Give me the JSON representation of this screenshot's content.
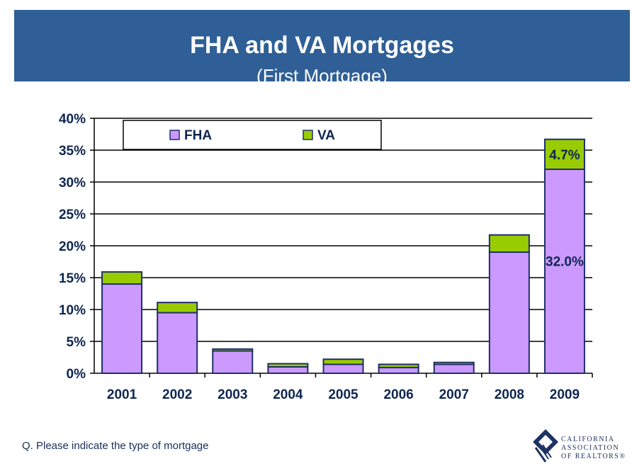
{
  "header": {
    "title": "FHA and VA Mortgages",
    "subtitle": "(First Mortgage)"
  },
  "footnote": "Q. Please indicate the type of mortgage",
  "logo": {
    "line1": "CALIFORNIA",
    "line2": "ASSOCIATION",
    "line3": "OF REALTORS®"
  },
  "colors": {
    "header_bg": "#2f5f96",
    "fha": "#cc99ff",
    "va": "#99cc00",
    "axis_text": "#0f2650",
    "outline": "#1f2f6b"
  },
  "chart_data": {
    "type": "bar",
    "stacked": true,
    "categories": [
      "2001",
      "2002",
      "2003",
      "2004",
      "2005",
      "2006",
      "2007",
      "2008",
      "2009"
    ],
    "series": [
      {
        "name": "FHA",
        "values": [
          14.0,
          9.5,
          3.5,
          1.0,
          1.4,
          0.9,
          1.4,
          19.0,
          32.0
        ],
        "color": "#cc99ff"
      },
      {
        "name": "VA",
        "values": [
          1.9,
          1.6,
          0.3,
          0.5,
          0.8,
          0.5,
          0.3,
          2.7,
          4.7
        ],
        "color": "#99cc00"
      }
    ],
    "ylim": [
      0,
      40
    ],
    "yticks": [
      0,
      5,
      10,
      15,
      20,
      25,
      30,
      35,
      40
    ],
    "ytick_format": "percent",
    "grid": true,
    "legend_position": "top-left",
    "data_labels": [
      {
        "category": "2009",
        "series": "VA",
        "text": "4.7%"
      },
      {
        "category": "2009",
        "series": "FHA",
        "text": "32.0%"
      }
    ]
  }
}
